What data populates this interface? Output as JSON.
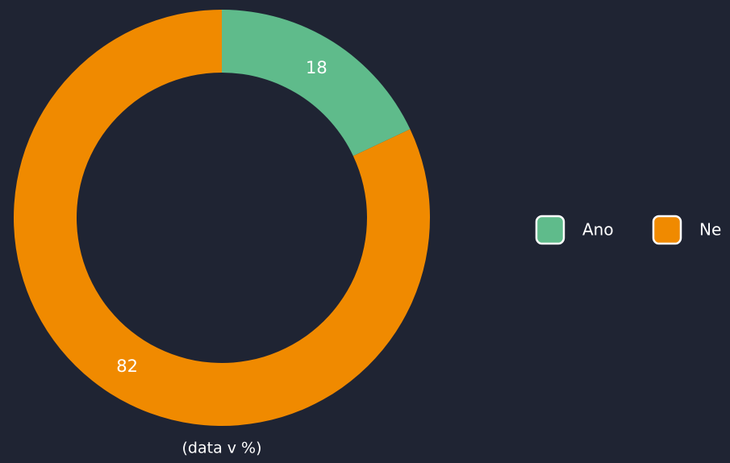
{
  "chart_data": {
    "type": "donut",
    "categories": [
      "Ano",
      "Ne"
    ],
    "values": [
      18,
      82
    ],
    "colors": [
      "#5fbb8b",
      "#f08a00"
    ],
    "note": "(data v %)",
    "legend": "right"
  }
}
